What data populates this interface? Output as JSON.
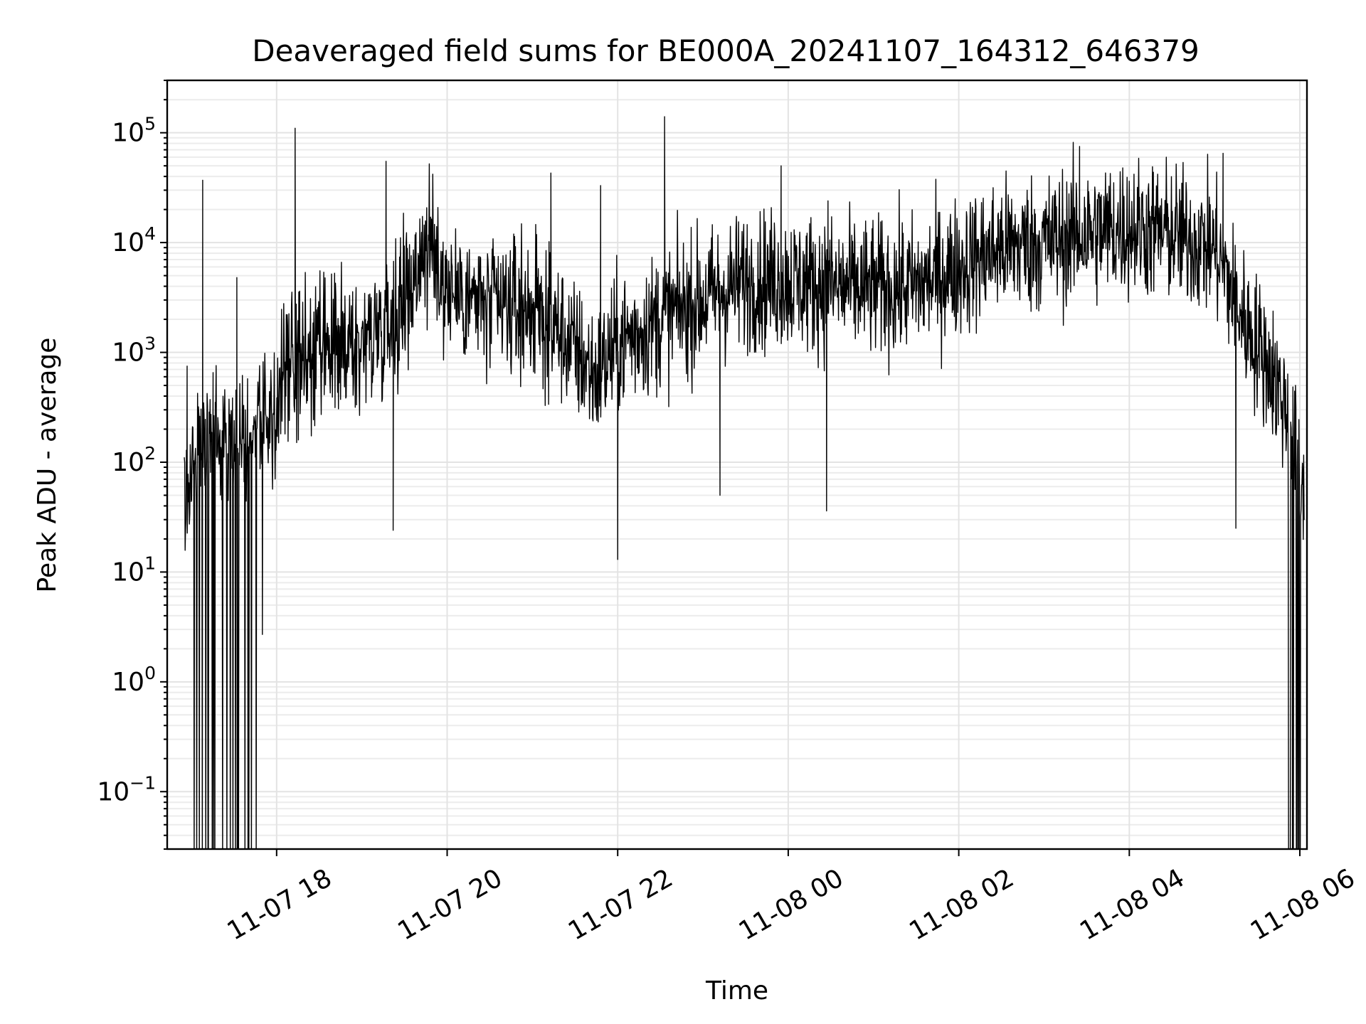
{
  "chart_data": {
    "type": "line",
    "title": "Deaveraged field sums for BE000A_20241107_164312_646379",
    "xlabel": "Time",
    "ylabel": "Peak ADU - average",
    "yscale": "log",
    "ylim": [
      0.03,
      300000
    ],
    "xlim": [
      "2024-11-07 16:43",
      "2024-11-08 06:05"
    ],
    "grid": true,
    "color": "#000000",
    "x_ticks": [
      {
        "t": "2024-11-07 18:00",
        "label": "11-07 18"
      },
      {
        "t": "2024-11-07 20:00",
        "label": "11-07 20"
      },
      {
        "t": "2024-11-07 22:00",
        "label": "11-07 22"
      },
      {
        "t": "2024-11-08 00:00",
        "label": "11-08 00"
      },
      {
        "t": "2024-11-08 02:00",
        "label": "11-08 02"
      },
      {
        "t": "2024-11-08 04:00",
        "label": "11-08 04"
      },
      {
        "t": "2024-11-08 06:00",
        "label": "11-08 06"
      }
    ],
    "y_ticks": [
      {
        "v": 0.1,
        "base": "10",
        "exp": "−1"
      },
      {
        "v": 1,
        "base": "10",
        "exp": "0"
      },
      {
        "v": 10,
        "base": "10",
        "exp": "1"
      },
      {
        "v": 100,
        "base": "10",
        "exp": "2"
      },
      {
        "v": 1000,
        "base": "10",
        "exp": "3"
      },
      {
        "v": 10000,
        "base": "10",
        "exp": "4"
      },
      {
        "v": 100000,
        "base": "10",
        "exp": "5"
      }
    ],
    "series_envelope": {
      "x": [
        "2024-11-07 16:55",
        "2024-11-07 17:10",
        "2024-11-07 17:30",
        "2024-11-07 17:50",
        "2024-11-07 18:00",
        "2024-11-07 18:05",
        "2024-11-07 18:30",
        "2024-11-07 19:00",
        "2024-11-07 19:30",
        "2024-11-07 19:45",
        "2024-11-07 20:00",
        "2024-11-07 20:30",
        "2024-11-07 21:00",
        "2024-11-07 21:20",
        "2024-11-07 21:45",
        "2024-11-07 22:00",
        "2024-11-07 22:30",
        "2024-11-07 23:00",
        "2024-11-07 23:30",
        "2024-11-08 00:00",
        "2024-11-08 00:30",
        "2024-11-08 01:00",
        "2024-11-08 01:30",
        "2024-11-08 02:00",
        "2024-11-08 02:30",
        "2024-11-08 03:00",
        "2024-11-08 03:30",
        "2024-11-08 04:00",
        "2024-11-08 04:30",
        "2024-11-08 05:00",
        "2024-11-08 05:20",
        "2024-11-08 05:40",
        "2024-11-08 05:50",
        "2024-11-08 06:00",
        "2024-11-08 06:03"
      ],
      "y": [
        60,
        150,
        200,
        250,
        220,
        700,
        900,
        1200,
        3000,
        10000,
        4000,
        2500,
        2500,
        1500,
        600,
        1200,
        2000,
        3000,
        4500,
        4500,
        4000,
        3800,
        4000,
        6000,
        9000,
        10000,
        12000,
        14000,
        12000,
        9000,
        2000,
        700,
        300,
        100,
        80
      ]
    },
    "spikes": [
      {
        "x": "2024-11-07 16:57",
        "y": 750
      },
      {
        "x": "2024-11-07 17:08",
        "y": 37000
      },
      {
        "x": "2024-11-07 17:32",
        "y": 4800
      },
      {
        "x": "2024-11-07 18:13",
        "y": 110000
      },
      {
        "x": "2024-11-07 19:17",
        "y": 55000
      },
      {
        "x": "2024-11-07 21:13",
        "y": 43000
      },
      {
        "x": "2024-11-07 21:48",
        "y": 33000
      },
      {
        "x": "2024-11-07 22:33",
        "y": 140000
      },
      {
        "x": "2024-11-07 23:55",
        "y": 50000
      },
      {
        "x": "2024-11-08 00:28",
        "y": 24000
      },
      {
        "x": "2024-11-08 03:25",
        "y": 75000
      },
      {
        "x": "2024-11-08 05:06",
        "y": 65000
      }
    ],
    "dips": [
      {
        "x": "2024-11-07 17:50",
        "y": 2.7
      },
      {
        "x": "2024-11-07 19:22",
        "y": 24
      },
      {
        "x": "2024-11-07 22:00",
        "y": 13
      },
      {
        "x": "2024-11-07 23:12",
        "y": 50
      },
      {
        "x": "2024-11-08 00:27",
        "y": 36
      },
      {
        "x": "2024-11-08 05:15",
        "y": 25
      }
    ]
  }
}
